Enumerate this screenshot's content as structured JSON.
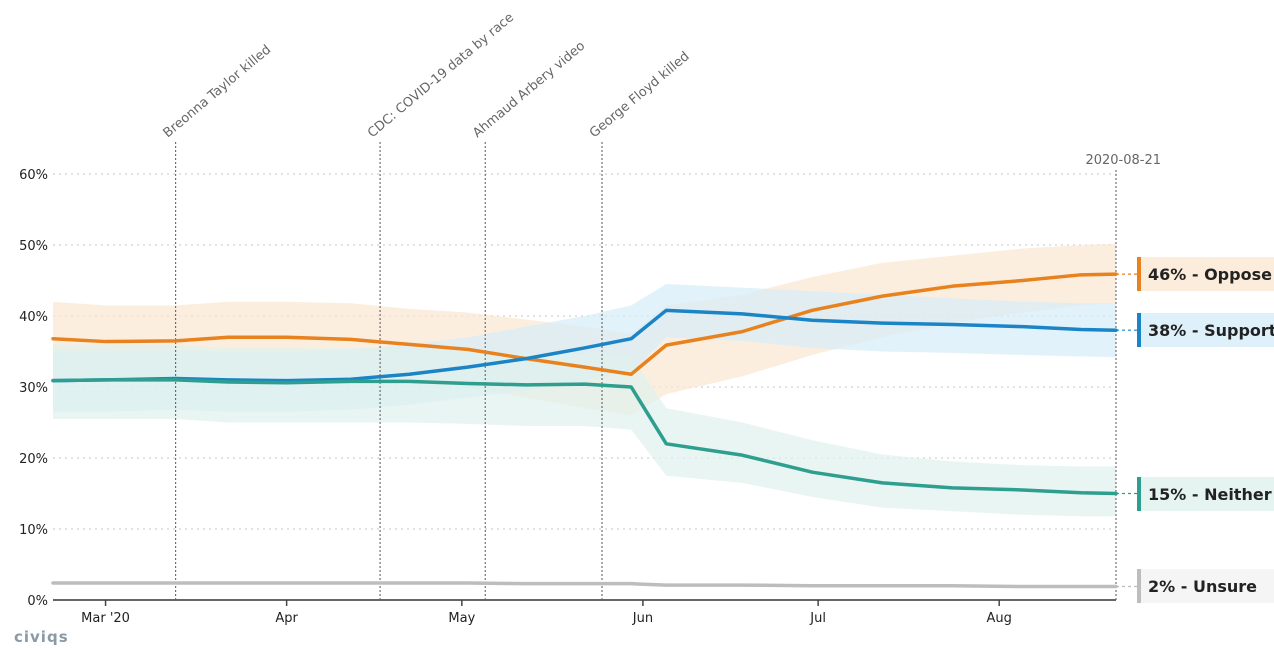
{
  "brand": {
    "logo_text": "civiqs"
  },
  "chart_data": {
    "type": "line",
    "title": "",
    "xlabel": "",
    "ylabel": "",
    "ylim": [
      0,
      60
    ],
    "yticks": [
      {
        "value": 0,
        "label": "0%"
      },
      {
        "value": 10,
        "label": "10%"
      },
      {
        "value": 20,
        "label": "20%"
      },
      {
        "value": 30,
        "label": "30%"
      },
      {
        "value": 40,
        "label": "40%"
      },
      {
        "value": 50,
        "label": "50%"
      },
      {
        "value": 60,
        "label": "60%"
      }
    ],
    "xlim": [
      "2020-02-21",
      "2020-08-21"
    ],
    "xticks": [
      {
        "date": "2020-03-01",
        "label": "Mar '20"
      },
      {
        "date": "2020-04-01",
        "label": "Apr"
      },
      {
        "date": "2020-05-01",
        "label": "May"
      },
      {
        "date": "2020-06-01",
        "label": "Jun"
      },
      {
        "date": "2020-07-01",
        "label": "Jul"
      },
      {
        "date": "2020-08-01",
        "label": "Aug"
      }
    ],
    "grid": true,
    "end_date_label": "2020-08-21",
    "events": [
      {
        "date": "2020-03-13",
        "label": "Breonna Taylor killed"
      },
      {
        "date": "2020-04-17",
        "label": "CDC: COVID-19 data by race"
      },
      {
        "date": "2020-05-05",
        "label": "Ahmaud Arbery video"
      },
      {
        "date": "2020-05-25",
        "label": "George Floyd killed"
      }
    ],
    "x": [
      "2020-02-21",
      "2020-03-01",
      "2020-03-13",
      "2020-03-22",
      "2020-04-01",
      "2020-04-12",
      "2020-04-22",
      "2020-05-02",
      "2020-05-12",
      "2020-05-22",
      "2020-05-30",
      "2020-06-05",
      "2020-06-18",
      "2020-06-30",
      "2020-07-12",
      "2020-07-24",
      "2020-08-05",
      "2020-08-15",
      "2020-08-21"
    ],
    "series": [
      {
        "name": "Oppose",
        "color": "#e8821e",
        "band_color": "#fbe7d2",
        "final_label": "46% - Oppose",
        "values": [
          36.8,
          36.4,
          36.5,
          37.0,
          37.0,
          36.7,
          36.0,
          35.3,
          34.0,
          32.8,
          31.8,
          35.9,
          37.8,
          40.8,
          42.8,
          44.2,
          45.0,
          45.8,
          45.9
        ],
        "lower": [
          31.5,
          31.5,
          31.5,
          31.8,
          31.8,
          31.5,
          31.0,
          30.0,
          28.5,
          27.0,
          26.0,
          29.0,
          31.5,
          34.5,
          37.0,
          39.0,
          40.5,
          41.5,
          41.8
        ],
        "upper": [
          42.0,
          41.5,
          41.5,
          42.0,
          42.0,
          41.8,
          41.0,
          40.5,
          39.5,
          38.5,
          37.5,
          41.5,
          43.0,
          45.5,
          47.5,
          48.5,
          49.5,
          50.0,
          50.2
        ]
      },
      {
        "name": "Support",
        "color": "#1a84c7",
        "band_color": "#d6ecf8",
        "final_label": "38% - Support",
        "values": [
          30.9,
          31.0,
          31.2,
          31.0,
          30.9,
          31.1,
          31.8,
          32.8,
          34.0,
          35.5,
          36.8,
          40.8,
          40.3,
          39.4,
          39.0,
          38.8,
          38.5,
          38.1,
          38.0
        ],
        "lower": [
          26.5,
          26.5,
          26.8,
          26.5,
          26.5,
          26.8,
          27.5,
          28.5,
          29.5,
          31.0,
          32.0,
          37.0,
          36.5,
          35.5,
          35.0,
          34.8,
          34.5,
          34.3,
          34.2
        ],
        "upper": [
          35.0,
          35.0,
          35.2,
          35.0,
          35.0,
          35.2,
          36.0,
          37.0,
          38.5,
          40.0,
          41.5,
          44.5,
          44.0,
          43.5,
          43.0,
          42.5,
          42.0,
          41.8,
          41.8
        ]
      },
      {
        "name": "Neither",
        "color": "#2e9e8f",
        "band_color": "#dff1ee",
        "final_label": "15% - Neither",
        "values": [
          30.9,
          31.0,
          31.0,
          30.7,
          30.6,
          30.8,
          30.8,
          30.5,
          30.3,
          30.4,
          30.0,
          22.0,
          20.4,
          18.0,
          16.5,
          15.8,
          15.5,
          15.1,
          15.0
        ],
        "lower": [
          25.5,
          25.5,
          25.5,
          25.0,
          25.0,
          25.0,
          25.0,
          24.8,
          24.5,
          24.5,
          24.0,
          17.5,
          16.5,
          14.5,
          13.0,
          12.5,
          12.0,
          11.8,
          11.8
        ],
        "upper": [
          36.0,
          36.0,
          36.0,
          35.5,
          35.5,
          35.5,
          35.5,
          35.0,
          34.8,
          34.8,
          34.5,
          27.0,
          25.0,
          22.5,
          20.5,
          19.5,
          19.0,
          18.8,
          18.8
        ]
      },
      {
        "name": "Unsure",
        "color": "#bdbdbd",
        "band_color": "#f2f2f2",
        "final_label": "2% - Unsure",
        "values": [
          2.4,
          2.4,
          2.4,
          2.4,
          2.4,
          2.4,
          2.4,
          2.4,
          2.3,
          2.3,
          2.3,
          2.1,
          2.1,
          2.0,
          2.0,
          2.0,
          1.9,
          1.9,
          1.9
        ],
        "lower": [
          2.2,
          2.2,
          2.2,
          2.2,
          2.2,
          2.2,
          2.2,
          2.2,
          2.1,
          2.1,
          2.1,
          1.9,
          1.9,
          1.8,
          1.8,
          1.8,
          1.7,
          1.7,
          1.7
        ],
        "upper": [
          2.6,
          2.6,
          2.6,
          2.6,
          2.6,
          2.6,
          2.6,
          2.6,
          2.5,
          2.5,
          2.5,
          2.3,
          2.3,
          2.2,
          2.2,
          2.2,
          2.1,
          2.1,
          2.1
        ]
      }
    ],
    "legend": {
      "placement": "right",
      "style": "end-labels"
    }
  }
}
